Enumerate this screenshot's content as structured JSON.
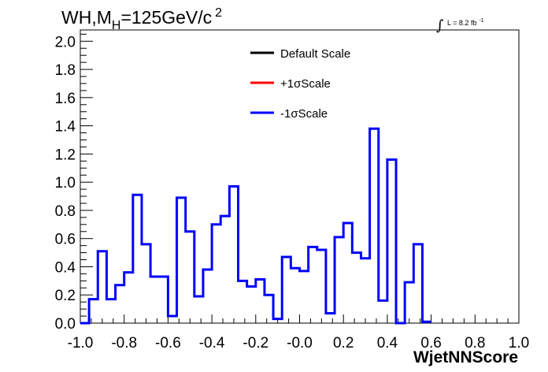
{
  "chart_data": {
    "type": "line",
    "title_main": "WH,M",
    "title_sub": "H",
    "title_rest": "=125GeV/c",
    "title_sup": "2",
    "lumi_integral": "∫",
    "lumi_text": "L = 8.2 fb",
    "lumi_sup": "-1",
    "xlabel": "WjetNNScore",
    "xlim": [
      -1.0,
      1.0
    ],
    "ylim": [
      0.0,
      2.08
    ],
    "xticks": [
      "-1.0",
      "-0.8",
      "-0.6",
      "-0.4",
      "-0.2",
      "-0.0",
      "0.2",
      "0.4",
      "0.6",
      "0.8",
      "1.0"
    ],
    "yticks": [
      "0.0",
      "0.2",
      "0.4",
      "0.6",
      "0.8",
      "1.0",
      "1.2",
      "1.4",
      "1.6",
      "1.8",
      "2.0"
    ],
    "bin_edges_start": -1.0,
    "bin_width": 0.04,
    "legend": [
      {
        "name": "Default Scale",
        "color": "#000000"
      },
      {
        "name": "+1σScale",
        "color": "#ff0000"
      },
      {
        "name": "-1σScale",
        "color": "#0000ff"
      }
    ],
    "series": [
      {
        "name": "-1σScale",
        "color": "#0000ff",
        "values": [
          0.0,
          0.17,
          0.51,
          0.17,
          0.27,
          0.36,
          0.91,
          0.56,
          0.33,
          0.33,
          0.05,
          0.89,
          0.65,
          0.19,
          0.38,
          0.7,
          0.76,
          0.97,
          0.3,
          0.26,
          0.31,
          0.2,
          0.03,
          0.47,
          0.39,
          0.37,
          0.54,
          0.52,
          0.07,
          0.61,
          0.71,
          0.5,
          0.46,
          1.38,
          0.16,
          1.16,
          0.0,
          0.29,
          0.56,
          0.01
        ]
      }
    ]
  }
}
